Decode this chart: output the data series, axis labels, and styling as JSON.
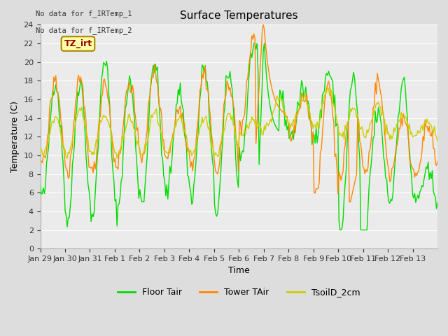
{
  "title": "Surface Temperatures",
  "xlabel": "Time",
  "ylabel": "Temperature (C)",
  "annotations": [
    "No data for f_IRTemp_1",
    "No data for f_IRTemp_2"
  ],
  "tz_label": "TZ_irt",
  "tz_color": "#990000",
  "tz_bg": "#ffffaa",
  "tz_border": "#aa8800",
  "legend_entries": [
    "Floor Tair",
    "Tower TAir",
    "TsoilD_2cm"
  ],
  "legend_colors": [
    "#00dd00",
    "#ff8800",
    "#cccc00"
  ],
  "ylim": [
    0,
    24
  ],
  "yticks": [
    0,
    2,
    4,
    6,
    8,
    10,
    12,
    14,
    16,
    18,
    20,
    22,
    24
  ],
  "xtick_labels": [
    "Jan 29",
    "Jan 30",
    "Jan 31",
    "Feb 1",
    "Feb 2",
    "Feb 3",
    "Feb 4",
    "Feb 5",
    "Feb 6",
    "Feb 7",
    "Feb 8",
    "Feb 9",
    "Feb 10",
    "Feb 11",
    "Feb 12",
    "Feb 13"
  ],
  "bg_color": "#dddddd",
  "plot_bg": "#ebebeb",
  "grid_color": "#ffffff",
  "line_width": 1.0,
  "figsize": [
    6.4,
    4.8
  ],
  "dpi": 100
}
